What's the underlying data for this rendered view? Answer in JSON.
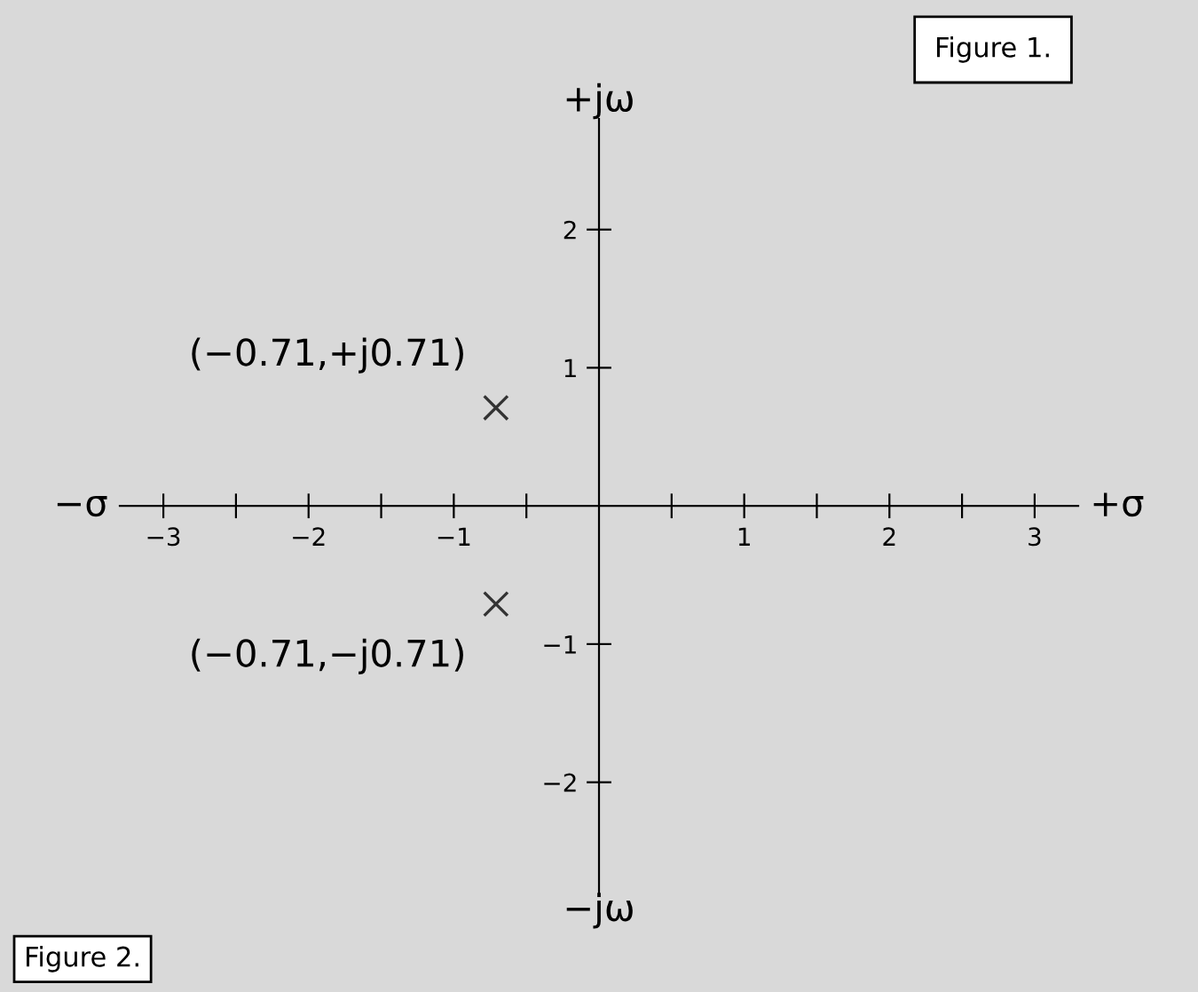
{
  "chart_data": {
    "type": "scatter",
    "xlabel": "+σ",
    "ylabel": "+jω",
    "x": [
      -0.71,
      -0.71
    ],
    "values": [
      0.71,
      -0.71
    ],
    "color": "#333333",
    "marker": "cross",
    "xlim": [
      -3.3,
      3.3
    ],
    "ylim": [
      -2.8,
      2.8
    ],
    "xticks": [
      -3,
      {
        "value": -2.5,
        "label": null
      },
      -2,
      {
        "value": -1.5,
        "label": null
      },
      -1,
      {
        "value": -0.5,
        "label": null
      },
      {
        "value": 0.5,
        "label": null
      },
      1,
      {
        "value": 1.5,
        "label": null
      },
      2,
      {
        "value": 2.5,
        "label": null
      },
      3
    ],
    "yticks": [
      -2,
      -1,
      1,
      2
    ],
    "grid": false,
    "annotations": [
      {
        "text": "(−0.71,+j0.71)",
        "x": -0.71,
        "y": 0.71
      },
      {
        "text": "(−0.71,−j0.71)",
        "x": -0.71,
        "y": -0.71
      },
      "−σ",
      "−jω",
      "Figure 2.",
      "Figure 1."
    ]
  }
}
